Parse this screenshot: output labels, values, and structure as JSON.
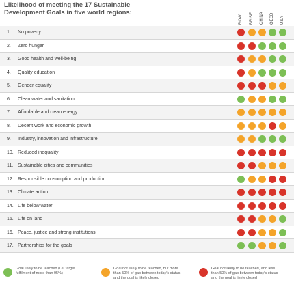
{
  "header": {
    "title": "Likelihood of meeting the 17 Sustainable Development Goals in five world regions:",
    "columns": [
      "ROW",
      "BRISE",
      "CHINA",
      "OECD",
      "USA"
    ]
  },
  "colors": {
    "green": "#7dbf55",
    "orange": "#f4a42a",
    "red": "#d8342a"
  },
  "table": {
    "rows": [
      {
        "number": "1.",
        "label": "No poverty",
        "cells": [
          "red",
          "orange",
          "orange",
          "green",
          "green"
        ]
      },
      {
        "number": "2.",
        "label": "Zero hunger",
        "cells": [
          "red",
          "red",
          "green",
          "green",
          "green"
        ]
      },
      {
        "number": "3.",
        "label": "Good health and well-being",
        "cells": [
          "red",
          "orange",
          "orange",
          "green",
          "green"
        ]
      },
      {
        "number": "4.",
        "label": "Quality education",
        "cells": [
          "red",
          "orange",
          "green",
          "green",
          "green"
        ]
      },
      {
        "number": "5.",
        "label": "Gender equality",
        "cells": [
          "red",
          "red",
          "red",
          "orange",
          "orange"
        ]
      },
      {
        "number": "6.",
        "label": "Clean water and sanitation",
        "cells": [
          "green",
          "orange",
          "orange",
          "green",
          "green"
        ]
      },
      {
        "number": "7.",
        "label": "Affordable and clean energy",
        "cells": [
          "orange",
          "orange",
          "orange",
          "orange",
          "orange"
        ]
      },
      {
        "number": "8.",
        "label": "Decent work and economic growth",
        "cells": [
          "orange",
          "orange",
          "orange",
          "red",
          "orange"
        ]
      },
      {
        "number": "9.",
        "label": "Industry, innovation and infrastructure",
        "cells": [
          "orange",
          "orange",
          "green",
          "green",
          "green"
        ]
      },
      {
        "number": "10.",
        "label": "Reduced inequality",
        "cells": [
          "red",
          "red",
          "red",
          "red",
          "red"
        ]
      },
      {
        "number": "11.",
        "label": "Sustainable cities and communities",
        "cells": [
          "red",
          "red",
          "orange",
          "orange",
          "orange"
        ]
      },
      {
        "number": "12.",
        "label": "Responsible consumption and production",
        "cells": [
          "green",
          "orange",
          "orange",
          "red",
          "red"
        ]
      },
      {
        "number": "13.",
        "label": "Climate action",
        "cells": [
          "red",
          "red",
          "red",
          "red",
          "red"
        ]
      },
      {
        "number": "14.",
        "label": "Life below water",
        "cells": [
          "red",
          "red",
          "red",
          "red",
          "red"
        ]
      },
      {
        "number": "15.",
        "label": "Life on land",
        "cells": [
          "red",
          "red",
          "orange",
          "orange",
          "green"
        ]
      },
      {
        "number": "16.",
        "label": "Peace, justice and strong institutions",
        "cells": [
          "red",
          "red",
          "orange",
          "orange",
          "green"
        ]
      },
      {
        "number": "17.",
        "label": "Partnerships for the goals",
        "cells": [
          "green",
          "green",
          "orange",
          "orange",
          "green"
        ]
      }
    ]
  },
  "legend": [
    {
      "color": "green",
      "text": "Goal likely to be reached (i.e. target fulfilment of more than 95%)"
    },
    {
      "color": "orange",
      "text": "Goal not likely to be reached, but more than 50% of gap between today's status and the goal is likely closed"
    },
    {
      "color": "red",
      "text": "Goal not likely to be reached, and less than 50% of gap between today's status and the goal is likely closed"
    }
  ]
}
